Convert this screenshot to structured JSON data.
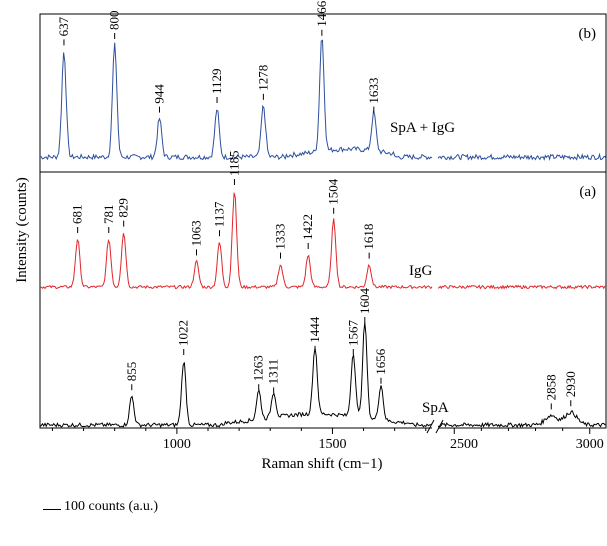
{
  "chart_data": {
    "type": "line",
    "xlabel": "Raman shift (cm−1)",
    "ylabel": "Intensity (counts)",
    "x_ticks_left": [
      "1000",
      "1500",
      "2500"
    ],
    "x_ticks_right": [
      "3000"
    ],
    "xlim_left": [
      560,
      1820
    ],
    "xlim_right": [
      2440,
      3060
    ],
    "panels": [
      {
        "label": "(b)",
        "region": "upper"
      },
      {
        "label": "(a)",
        "region": "lower"
      }
    ],
    "series": [
      {
        "name": "SpA + IgG",
        "panel": "(b)",
        "color": "#2d4f9e",
        "peaks": [
          {
            "x": 637,
            "y": 330,
            "label": "637"
          },
          {
            "x": 800,
            "y": 350,
            "label": "800"
          },
          {
            "x": 944,
            "y": 120,
            "label": "944"
          },
          {
            "x": 1129,
            "y": 150,
            "label": "1129"
          },
          {
            "x": 1278,
            "y": 160,
            "label": "1278"
          },
          {
            "x": 1466,
            "y": 360,
            "label": "1466"
          },
          {
            "x": 1633,
            "y": 120,
            "label": "1633"
          }
        ]
      },
      {
        "name": "IgG",
        "panel": "(a)",
        "color": "#e0262b",
        "peaks": [
          {
            "x": 681,
            "y": 150,
            "label": "681"
          },
          {
            "x": 781,
            "y": 150,
            "label": "781"
          },
          {
            "x": 829,
            "y": 170,
            "label": "829"
          },
          {
            "x": 1063,
            "y": 80,
            "label": "1063"
          },
          {
            "x": 1137,
            "y": 140,
            "label": "1137"
          },
          {
            "x": 1185,
            "y": 300,
            "label": "1185"
          },
          {
            "x": 1333,
            "y": 70,
            "label": "1333"
          },
          {
            "x": 1422,
            "y": 100,
            "label": "1422"
          },
          {
            "x": 1504,
            "y": 210,
            "label": "1504"
          },
          {
            "x": 1618,
            "y": 70,
            "label": "1618"
          }
        ]
      },
      {
        "name": "SpA",
        "panel": "(a)",
        "color": "#000000",
        "peaks": [
          {
            "x": 855,
            "y": 90,
            "label": "855"
          },
          {
            "x": 1022,
            "y": 200,
            "label": "1022"
          },
          {
            "x": 1263,
            "y": 90,
            "label": "1263"
          },
          {
            "x": 1311,
            "y": 80,
            "label": "1311"
          },
          {
            "x": 1444,
            "y": 210,
            "label": "1444"
          },
          {
            "x": 1567,
            "y": 200,
            "label": "1567"
          },
          {
            "x": 1604,
            "y": 300,
            "label": "1604"
          },
          {
            "x": 1656,
            "y": 110,
            "label": "1656"
          },
          {
            "x": 2858,
            "y": 30,
            "label": "2858"
          },
          {
            "x": 2930,
            "y": 40,
            "label": "2930"
          }
        ]
      }
    ],
    "scale_bar_label": "100 counts (a.u.)",
    "grid": false,
    "legend": "none"
  }
}
